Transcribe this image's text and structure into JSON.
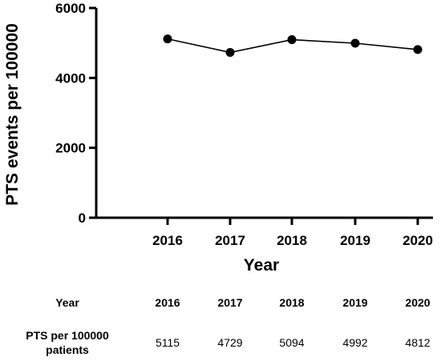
{
  "chart_data": {
    "type": "line",
    "x": [
      2016,
      2017,
      2018,
      2019,
      2020
    ],
    "values": [
      5115,
      4729,
      5094,
      4992,
      4812
    ],
    "xlabel": "Year",
    "ylabel": "PTS events per 100000",
    "ylim": [
      0,
      6000
    ],
    "yticks": [
      0,
      2000,
      4000,
      6000
    ],
    "xtick_labels": [
      "2016",
      "2017",
      "2018",
      "2019",
      "2020"
    ],
    "ytick_labels": [
      "0",
      "2000",
      "4000",
      "6000"
    ],
    "grid": false
  },
  "table": {
    "header_label": "Year",
    "years": [
      "2016",
      "2017",
      "2018",
      "2019",
      "2020"
    ],
    "row_label_line1": "PTS per 100000",
    "row_label_line2": "patients",
    "values": [
      "5115",
      "4729",
      "5094",
      "4992",
      "4812"
    ]
  }
}
